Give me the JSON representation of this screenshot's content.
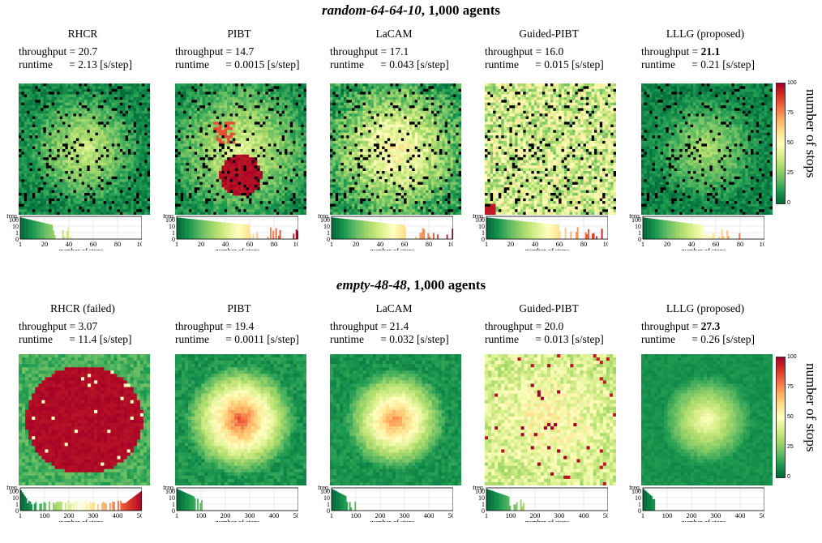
{
  "colors": {
    "scale": [
      "#006837",
      "#1a9850",
      "#66bd63",
      "#a6d96a",
      "#d9ef8b",
      "#ffffbf",
      "#fee08b",
      "#fdae61",
      "#f46d43",
      "#d73027",
      "#a50026"
    ],
    "obstacle": "#000000"
  },
  "colorbar": {
    "label": "number of stops",
    "ticks": [
      "100",
      "75",
      "50",
      "25",
      "0"
    ]
  },
  "chart_data": [
    {
      "type": "heatmap",
      "title_map": "random-64-64-10",
      "title_rest": ", 1,000 agents",
      "xlabel": "number of stops",
      "ylabel": "freq.",
      "xticks": [
        "1",
        "20",
        "40",
        "60",
        "80",
        "100"
      ],
      "xmax": 100,
      "yticks": [
        "100",
        "10",
        "1",
        "0"
      ],
      "panels": [
        {
          "name": "RHCR",
          "throughput": "20.7",
          "runtime": "2.13",
          "bold": false,
          "hist_extent": 44
        },
        {
          "name": "PIBT",
          "throughput": "14.7",
          "runtime": "0.0015",
          "bold": false,
          "hist_extent": 100
        },
        {
          "name": "LaCAM",
          "throughput": "17.1",
          "runtime": "0.043",
          "bold": false,
          "hist_extent": 100
        },
        {
          "name": "Guided-PIBT",
          "throughput": "16.0",
          "runtime": "0.015",
          "bold": false,
          "hist_extent": 100
        },
        {
          "name": "LLLG (proposed)",
          "throughput": "21.1",
          "runtime": "0.21",
          "bold": true,
          "hist_extent": 82
        }
      ]
    },
    {
      "type": "heatmap",
      "title_map": "empty-48-48",
      "title_rest": ", 1,000 agents",
      "xlabel": "number of stops",
      "ylabel": "freq.",
      "xticks": [
        "1",
        "100",
        "200",
        "300",
        "400",
        "500"
      ],
      "xmax": 500,
      "yticks": [
        "100",
        "10",
        "1",
        "0"
      ],
      "panels": [
        {
          "name": "RHCR (failed)",
          "throughput": "3.07",
          "runtime": "11.4",
          "bold": false,
          "hist_extent": 500
        },
        {
          "name": "PIBT",
          "throughput": "19.4",
          "runtime": "0.0011",
          "bold": false,
          "hist_extent": 115
        },
        {
          "name": "LaCAM",
          "throughput": "21.4",
          "runtime": "0.032",
          "bold": false,
          "hist_extent": 100
        },
        {
          "name": "Guided-PIBT",
          "throughput": "20.0",
          "runtime": "0.013",
          "bold": false,
          "hist_extent": 150
        },
        {
          "name": "LLLG (proposed)",
          "throughput": "27.3",
          "runtime": "0.26",
          "bold": true,
          "hist_extent": 60
        }
      ]
    }
  ],
  "labels": {
    "throughput": "throughput",
    "runtime": "runtime",
    "unit": "[s/step]"
  }
}
